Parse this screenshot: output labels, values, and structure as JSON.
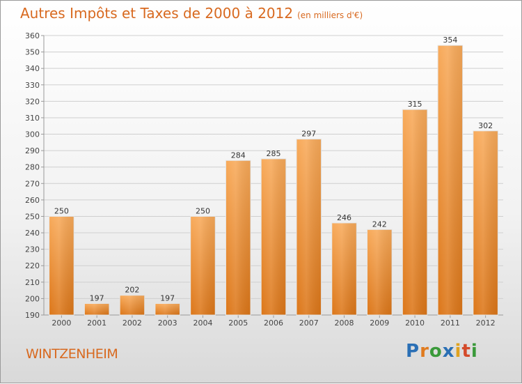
{
  "header": {
    "title": "Autres Impôts et Taxes de 2000 à 2012",
    "unit": "(en milliers d'€)"
  },
  "footer": {
    "city": "WINTZENHEIM",
    "logo_letters": [
      "P",
      "r",
      "o",
      "x",
      "i",
      "t",
      "i"
    ],
    "logo_colors": [
      "#2a6fb5",
      "#e07b1f",
      "#3a9a3a",
      "#2a6fb5",
      "#e0a21f",
      "#d44a2a",
      "#3a9a3a"
    ]
  },
  "chart_data": {
    "type": "bar",
    "title": "Autres Impôts et Taxes de 2000 à 2012",
    "subtitle": "(en milliers d'€)",
    "categories": [
      "2000",
      "2001",
      "2002",
      "2003",
      "2004",
      "2005",
      "2006",
      "2007",
      "2008",
      "2009",
      "2010",
      "2011",
      "2012"
    ],
    "values": [
      250,
      197,
      202,
      197,
      250,
      284,
      285,
      297,
      246,
      242,
      315,
      354,
      302
    ],
    "ylim": [
      190,
      360
    ],
    "yticks": [
      190,
      200,
      210,
      220,
      230,
      240,
      250,
      260,
      270,
      280,
      290,
      300,
      310,
      320,
      330,
      340,
      350,
      360
    ],
    "grid": true,
    "bar_color_top": "#f7a857",
    "bar_color_bottom": "#e07b1f"
  }
}
